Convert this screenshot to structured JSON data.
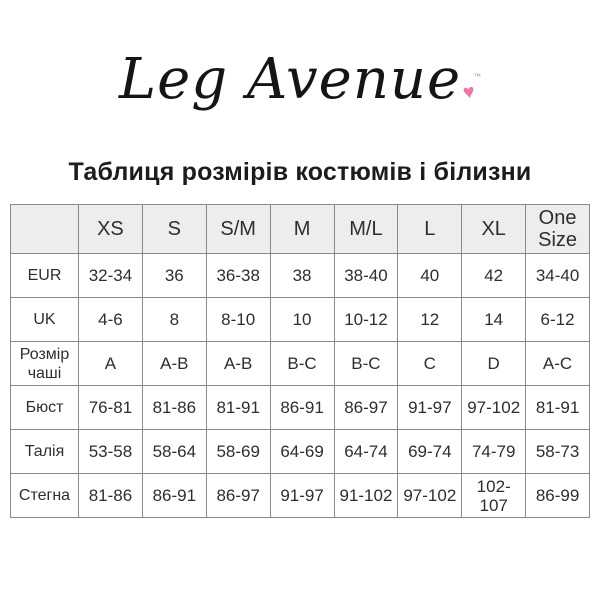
{
  "logo": {
    "text": "Leg Avenue",
    "tm": "™",
    "heart_glyph": "♥",
    "heart_color": "#ee76ab"
  },
  "title": "Таблиця розмірів костюмів і білизни",
  "table": {
    "columns": [
      "",
      "XS",
      "S",
      "S/M",
      "M",
      "M/L",
      "L",
      "XL",
      "One Size"
    ],
    "rows": [
      {
        "label": "EUR",
        "values": [
          "32-34",
          "36",
          "36-38",
          "38",
          "38-40",
          "40",
          "42",
          "34-40"
        ]
      },
      {
        "label": "UK",
        "values": [
          "4-6",
          "8",
          "8-10",
          "10",
          "10-12",
          "12",
          "14",
          "6-12"
        ]
      },
      {
        "label": "Розмір чаші",
        "values": [
          "A",
          "A-B",
          "A-B",
          "B-C",
          "B-C",
          "C",
          "D",
          "A-C"
        ]
      },
      {
        "label": "Бюст",
        "values": [
          "76-81",
          "81-86",
          "81-91",
          "86-91",
          "86-97",
          "91-97",
          "97-102",
          "81-91"
        ]
      },
      {
        "label": "Талія",
        "values": [
          "53-58",
          "58-64",
          "58-69",
          "64-69",
          "64-74",
          "69-74",
          "74-79",
          "58-73"
        ]
      },
      {
        "label": "Стегна",
        "values": [
          "81-86",
          "86-91",
          "86-97",
          "91-97",
          "91-102",
          "97-102",
          "102-107",
          "86-99"
        ]
      }
    ]
  },
  "colors": {
    "header_bg": "#ededed",
    "border": "#8a8a8a",
    "text": "#2e2e2e",
    "heart": "#ee76ab"
  }
}
